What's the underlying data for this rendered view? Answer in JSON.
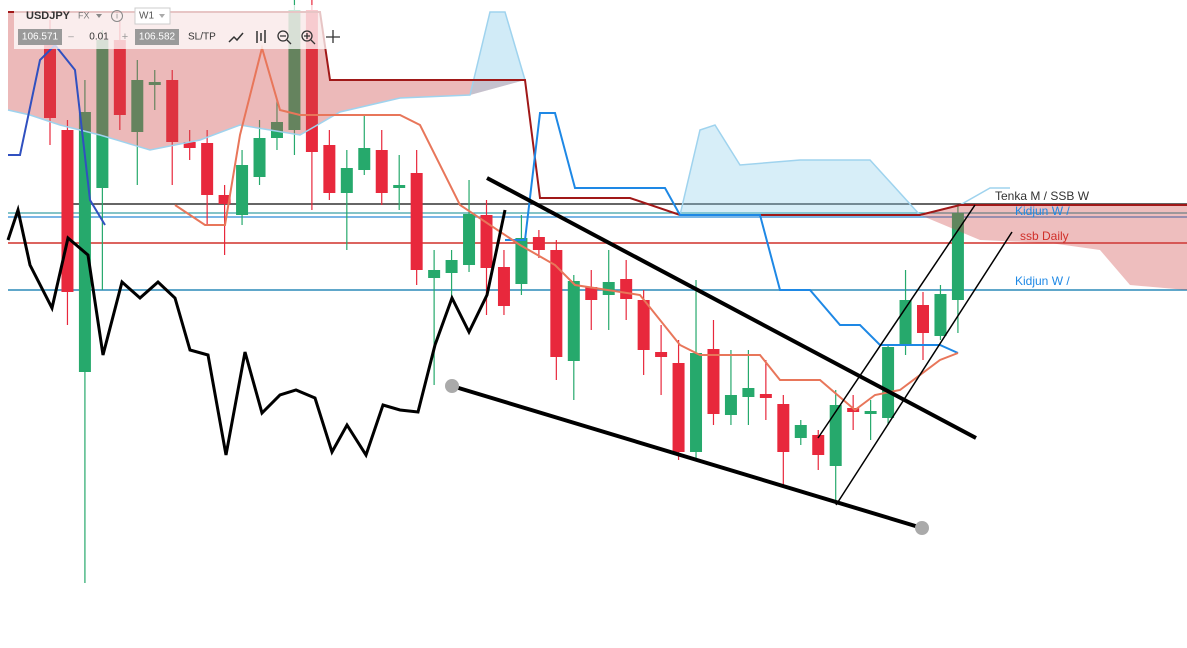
{
  "toolbar": {
    "symbol": "USDJPY",
    "market": "FX",
    "timeframe": "W1",
    "bid": "106.571",
    "step": "0.01",
    "ask": "106.582",
    "sltp": "SL/TP"
  },
  "chart_data": {
    "type": "candlestick",
    "ylim": [
      98.04,
      111
    ],
    "up_color": "#26a96c",
    "down_color": "#e8283c",
    "series": [
      {
        "name": "USDJPY",
        "open": [
          110.4,
          108.4,
          103.56,
          107.24,
          110.2,
          108.36,
          109.3,
          109.4,
          108.16,
          108.14,
          107.1,
          106.7,
          107.46,
          108.24,
          108.4,
          110.8,
          108.1,
          107.14,
          107.6,
          108.0,
          107.24,
          107.54,
          105.44,
          105.54,
          105.7,
          106.7,
          105.66,
          105.32,
          106.26,
          106.0,
          103.78,
          105.26,
          105.1,
          105.42,
          105.0,
          103.96,
          103.74,
          101.96,
          104.02,
          102.7,
          103.06,
          103.12,
          102.92,
          102.24,
          102.3,
          101.68,
          102.84,
          102.72,
          102.64,
          104.08,
          104.9,
          104.28,
          105.0
        ],
        "high": [
          110.6,
          108.6,
          109.4,
          110.4,
          110.6,
          109.8,
          109.6,
          109.6,
          108.4,
          108.4,
          107.3,
          108.0,
          108.6,
          109.0,
          111.0,
          111.0,
          108.4,
          108.0,
          108.7,
          108.4,
          107.9,
          108.0,
          106.0,
          106.0,
          107.4,
          107.0,
          106.0,
          106.7,
          106.4,
          106.2,
          105.5,
          105.6,
          106.0,
          105.8,
          105.2,
          104.5,
          104.2,
          105.4,
          104.6,
          104.0,
          104.0,
          103.8,
          103.1,
          102.6,
          102.4,
          103.2,
          103.1,
          103.0,
          104.1,
          105.6,
          105.16,
          105.3,
          106.9
        ],
        "low": [
          108.1,
          104.5,
          99.34,
          105.2,
          108.4,
          107.3,
          108.8,
          107.3,
          107.8,
          106.5,
          105.9,
          106.5,
          107.3,
          108.0,
          107.9,
          106.8,
          107.0,
          106.0,
          107.5,
          106.9,
          106.8,
          105.3,
          103.3,
          105.0,
          105.56,
          104.7,
          104.7,
          105.1,
          105.84,
          103.4,
          103.0,
          104.4,
          104.4,
          104.6,
          103.5,
          103.1,
          101.8,
          101.8,
          102.5,
          102.5,
          102.5,
          102.6,
          101.3,
          102.1,
          101.6,
          100.96,
          102.4,
          102.2,
          102.5,
          103.9,
          103.8,
          104.2,
          104.34
        ],
        "close": [
          108.64,
          105.16,
          108.76,
          110.2,
          108.7,
          109.4,
          109.36,
          108.16,
          108.04,
          107.1,
          106.92,
          107.7,
          108.24,
          108.56,
          110.8,
          107.96,
          107.14,
          107.64,
          108.04,
          107.14,
          107.3,
          105.6,
          105.6,
          105.8,
          106.72,
          105.64,
          104.88,
          106.24,
          106.0,
          103.86,
          105.38,
          105.0,
          105.36,
          105.02,
          104.0,
          103.86,
          101.96,
          103.94,
          102.72,
          103.1,
          103.24,
          103.04,
          101.96,
          102.5,
          101.9,
          102.9,
          102.76,
          102.78,
          104.06,
          105.0,
          104.34,
          105.12,
          106.74
        ]
      }
    ]
  },
  "annotations": [
    "Tenka M / SSB W",
    "Kidjun W /",
    "ssb Daily",
    "Kidjun W /"
  ]
}
